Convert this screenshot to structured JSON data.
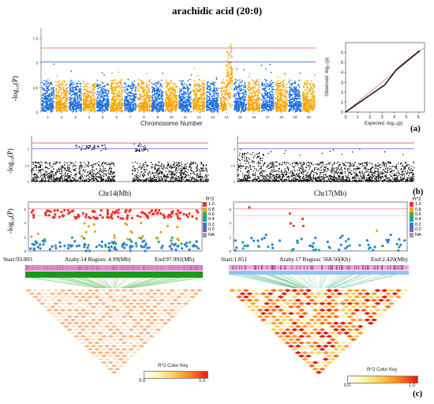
{
  "title": "arachidic acid (20:0)",
  "panels": {
    "a": "(a)",
    "b": "(b)",
    "c": "(c)"
  },
  "manhattan": {
    "ylabel": "-log₁₀(P)",
    "xlabel": "Chromosome Number",
    "chromosomes": [
      "1",
      "2",
      "3",
      "4",
      "5",
      "6",
      "7",
      "8",
      "9",
      "10",
      "11",
      "12",
      "13",
      "14",
      "15",
      "16",
      "17",
      "18",
      "19",
      "20"
    ],
    "yticks": [
      "0",
      "2.5",
      "5",
      "7.5"
    ],
    "colors": {
      "a": "#1f6fe0",
      "b": "#f5a500",
      "threshold_red": "#e23c3c",
      "threshold_blue": "#3b4bd6"
    }
  },
  "qq": {
    "ylabel": "Observed -log₁₀(p)",
    "xlabel": "Expected -log₁₀(p)",
    "xticks": [
      "0",
      "1",
      "2",
      "3",
      "4",
      "5",
      "6"
    ],
    "yticks": [
      "0",
      "1",
      "2",
      "3",
      "4",
      "5",
      "6"
    ]
  },
  "zoom_left": {
    "xlabel": "Chr14(Mb)",
    "ylabel": "-log₁₀(P)"
  },
  "zoom_right": {
    "xlabel": "Chr17(Mb)"
  },
  "regional_left": {
    "ylabel": "-log₁₀(P)",
    "start": "Start:93.003",
    "region": "Arahy.14 Region: 4.99(Mb)",
    "end": "End:97.992(Mb)"
  },
  "regional_right": {
    "start": "Start:1.851",
    "region": "Arahy.17 Region: 568.50(Kb)",
    "end": "End:2.420(Mb)"
  },
  "r2_legend": {
    "title": "R^2",
    "items": [
      {
        "label": "1.0",
        "color": "#e8352a"
      },
      {
        "label": "0.8",
        "color": "#f2a41c"
      },
      {
        "label": "0.6",
        "color": "#2fb24a"
      },
      {
        "label": "0.4",
        "color": "#16a3a0"
      },
      {
        "label": "0.2",
        "color": "#2d7fd6"
      },
      {
        "label": "0.0",
        "color": "#6f5fc5"
      },
      {
        "label": "NA",
        "color": "#9e9e9e"
      }
    ]
  },
  "color_key": {
    "title": "R^2 Color Key",
    "min": "0.0",
    "max": "1.0"
  }
}
